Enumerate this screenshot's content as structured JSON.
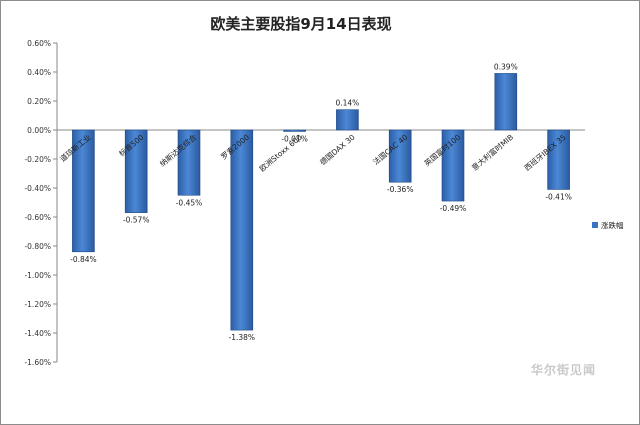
{
  "chart_data": {
    "type": "bar",
    "title": "欧美主要股指9月14日表现",
    "categories": [
      "道琼斯工业",
      "标普500",
      "纳斯达克综合",
      "罗素2000",
      "欧洲Stoxx 600",
      "德国DAX 30",
      "法国CAC 40",
      "英国富时100",
      "意大利富时MIB",
      "西班牙IBEX 35"
    ],
    "series": [
      {
        "name": "涨跌幅",
        "values": [
          -0.84,
          -0.57,
          -0.45,
          -1.38,
          -0.01,
          0.14,
          -0.36,
          -0.49,
          0.39,
          -0.41
        ]
      }
    ],
    "value_labels": [
      "-0.84%",
      "-0.57%",
      "-0.45%",
      "-1.38%",
      "-0.01%",
      "0.14%",
      "-0.36%",
      "-0.49%",
      "0.39%",
      "-0.41%"
    ],
    "yticks": [
      "0.60%",
      "0.40%",
      "0.20%",
      "0.00%",
      "-0.20%",
      "-0.40%",
      "-0.60%",
      "-0.80%",
      "-1.00%",
      "-1.20%",
      "-1.40%",
      "-1.60%"
    ],
    "ylim": [
      -1.6,
      0.6
    ],
    "xlabel": "",
    "ylabel": "",
    "grid": false,
    "legend": "right",
    "bar_color": "#3a73c2"
  },
  "watermark": "华尔街见闻"
}
